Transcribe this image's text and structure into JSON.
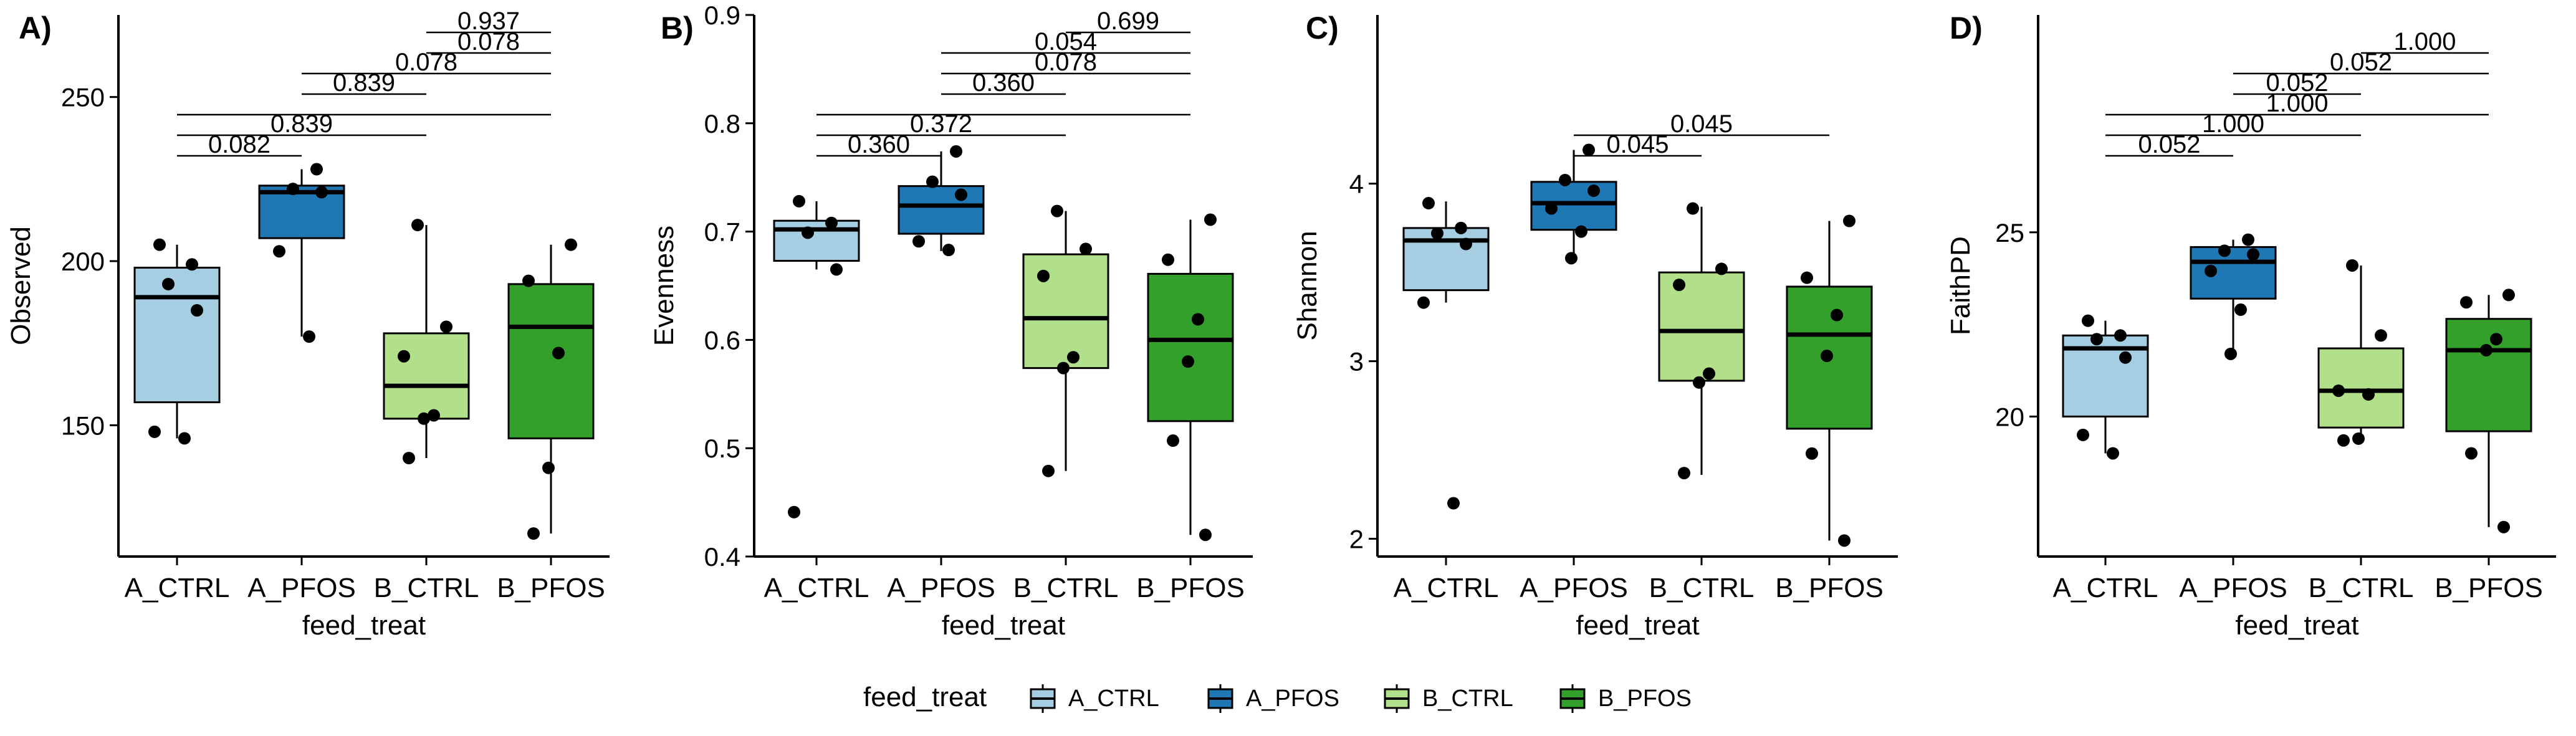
{
  "chart_data": [
    {
      "type": "box",
      "panel_label": "A)",
      "xlabel": "feed_treat",
      "ylabel": "Observed",
      "categories": [
        "A_CTRL",
        "A_PFOS",
        "B_CTRL",
        "B_PFOS"
      ],
      "ylim": [
        110,
        275
      ],
      "yticks": [
        150,
        200,
        250
      ],
      "boxes": [
        {
          "q1": 157,
          "median": 189,
          "q3": 198,
          "whisker_low": 146,
          "whisker_high": 205
        },
        {
          "q1": 207,
          "median": 221,
          "q3": 223,
          "whisker_low": 177,
          "whisker_high": 228
        },
        {
          "q1": 152,
          "median": 162,
          "q3": 178,
          "whisker_low": 140,
          "whisker_high": 211
        },
        {
          "q1": 146,
          "median": 180,
          "q3": 193,
          "whisker_low": 117,
          "whisker_high": 205
        }
      ],
      "points": [
        [
          205,
          199,
          193,
          185,
          148,
          146
        ],
        [
          228,
          222,
          221,
          203,
          177
        ],
        [
          211,
          180,
          171,
          153,
          152,
          140
        ],
        [
          205,
          194,
          172,
          137,
          117
        ]
      ],
      "comparisons": [
        {
          "from": 0,
          "to": 1,
          "p": "0.082"
        },
        {
          "from": 0,
          "to": 2,
          "p": "0.839"
        },
        {
          "from": 0,
          "to": 3,
          "p": ""
        },
        {
          "from": 1,
          "to": 2,
          "p": "0.839"
        },
        {
          "from": 1,
          "to": 3,
          "p": "0.078"
        },
        {
          "from": 2,
          "to": 3,
          "p": "0.078"
        },
        {
          "from": 2,
          "to": 3,
          "p": "0.937"
        }
      ]
    },
    {
      "type": "box",
      "panel_label": "B)",
      "xlabel": "feed_treat",
      "ylabel": "Evenness",
      "categories": [
        "A_CTRL",
        "A_PFOS",
        "B_CTRL",
        "B_PFOS"
      ],
      "ylim": [
        0.4,
        0.9
      ],
      "yticks": [
        0.4,
        0.5,
        0.6,
        0.7,
        0.8,
        0.9
      ],
      "boxes": [
        {
          "q1": 0.673,
          "median": 0.702,
          "q3": 0.71,
          "whisker_low": 0.665,
          "whisker_high": 0.728
        },
        {
          "q1": 0.698,
          "median": 0.724,
          "q3": 0.742,
          "whisker_low": 0.682,
          "whisker_high": 0.774
        },
        {
          "q1": 0.574,
          "median": 0.62,
          "q3": 0.679,
          "whisker_low": 0.479,
          "whisker_high": 0.719
        },
        {
          "q1": 0.525,
          "median": 0.6,
          "q3": 0.661,
          "whisker_low": 0.42,
          "whisker_high": 0.711
        }
      ],
      "points": [
        [
          0.728,
          0.708,
          0.699,
          0.665,
          0.441
        ],
        [
          0.774,
          0.746,
          0.734,
          0.691,
          0.683
        ],
        [
          0.719,
          0.684,
          0.659,
          0.584,
          0.574,
          0.479
        ],
        [
          0.711,
          0.674,
          0.619,
          0.58,
          0.507,
          0.42
        ]
      ],
      "comparisons": [
        {
          "from": 0,
          "to": 1,
          "p": "0.360"
        },
        {
          "from": 0,
          "to": 2,
          "p": "0.372"
        },
        {
          "from": 0,
          "to": 3,
          "p": ""
        },
        {
          "from": 1,
          "to": 2,
          "p": "0.360"
        },
        {
          "from": 1,
          "to": 3,
          "p": "0.078"
        },
        {
          "from": 1,
          "to": 3,
          "p": "0.054"
        },
        {
          "from": 2,
          "to": 3,
          "p": "0.699"
        }
      ]
    },
    {
      "type": "box",
      "panel_label": "C)",
      "xlabel": "feed_treat",
      "ylabel": "Shannon",
      "categories": [
        "A_CTRL",
        "A_PFOS",
        "B_CTRL",
        "B_PFOS"
      ],
      "ylim": [
        1.9,
        4.95
      ],
      "yticks": [
        2,
        3,
        4
      ],
      "boxes": [
        {
          "q1": 3.4,
          "median": 3.68,
          "q3": 3.75,
          "whisker_low": 3.33,
          "whisker_high": 3.9
        },
        {
          "q1": 3.74,
          "median": 3.89,
          "q3": 4.01,
          "whisker_low": 3.58,
          "whisker_high": 4.19
        },
        {
          "q1": 2.89,
          "median": 3.17,
          "q3": 3.5,
          "whisker_low": 2.36,
          "whisker_high": 3.87
        },
        {
          "q1": 2.62,
          "median": 3.15,
          "q3": 3.42,
          "whisker_low": 1.99,
          "whisker_high": 3.79
        }
      ],
      "points": [
        [
          3.89,
          3.75,
          3.72,
          3.66,
          3.33,
          2.2
        ],
        [
          4.19,
          4.02,
          3.96,
          3.86,
          3.73,
          3.58
        ],
        [
          3.86,
          3.52,
          3.43,
          2.93,
          2.88,
          2.37
        ],
        [
          3.79,
          3.47,
          3.26,
          3.03,
          2.48,
          1.99
        ]
      ],
      "comparisons": [
        {
          "from": 1,
          "to": 2,
          "p": "0.045"
        },
        {
          "from": 1,
          "to": 3,
          "p": "0.045"
        }
      ]
    },
    {
      "type": "box",
      "panel_label": "D)",
      "xlabel": "feed_treat",
      "ylabel": "FaithPD",
      "categories": [
        "A_CTRL",
        "A_PFOS",
        "B_CTRL",
        "B_PFOS"
      ],
      "ylim": [
        16.2,
        30.9
      ],
      "yticks": [
        20,
        25
      ],
      "boxes": [
        {
          "q1": 20,
          "median": 21.85,
          "q3": 22.2,
          "whisker_low": 19,
          "whisker_high": 22.6
        },
        {
          "q1": 23.2,
          "median": 24.2,
          "q3": 24.6,
          "whisker_low": 21.7,
          "whisker_high": 24.8
        },
        {
          "q1": 19.7,
          "median": 20.7,
          "q3": 21.85,
          "whisker_low": 19.35,
          "whisker_high": 24.1
        },
        {
          "q1": 19.6,
          "median": 21.8,
          "q3": 22.65,
          "whisker_low": 17,
          "whisker_high": 23.3
        }
      ],
      "points": [
        [
          22.6,
          22.2,
          22.1,
          21.6,
          19.5,
          19
        ],
        [
          24.8,
          24.5,
          24.4,
          23.95,
          22.9,
          21.7
        ],
        [
          24.1,
          22.2,
          20.7,
          20.6,
          19.4,
          19.35
        ],
        [
          23.3,
          23.1,
          22.1,
          21.8,
          19,
          17
        ]
      ],
      "comparisons": [
        {
          "from": 0,
          "to": 1,
          "p": "0.052"
        },
        {
          "from": 0,
          "to": 2,
          "p": "1.000"
        },
        {
          "from": 0,
          "to": 3,
          "p": "1.000"
        },
        {
          "from": 1,
          "to": 2,
          "p": "0.052"
        },
        {
          "from": 1,
          "to": 3,
          "p": "0.052"
        },
        {
          "from": 2,
          "to": 3,
          "p": "1.000"
        }
      ]
    }
  ],
  "legend": {
    "title": "feed_treat",
    "position": "bottom",
    "items": [
      {
        "label": "A_CTRL",
        "color": "#a6cee3"
      },
      {
        "label": "A_PFOS",
        "color": "#1f78b4"
      },
      {
        "label": "B_CTRL",
        "color": "#b2df8a"
      },
      {
        "label": "B_PFOS",
        "color": "#33a02c"
      }
    ]
  }
}
